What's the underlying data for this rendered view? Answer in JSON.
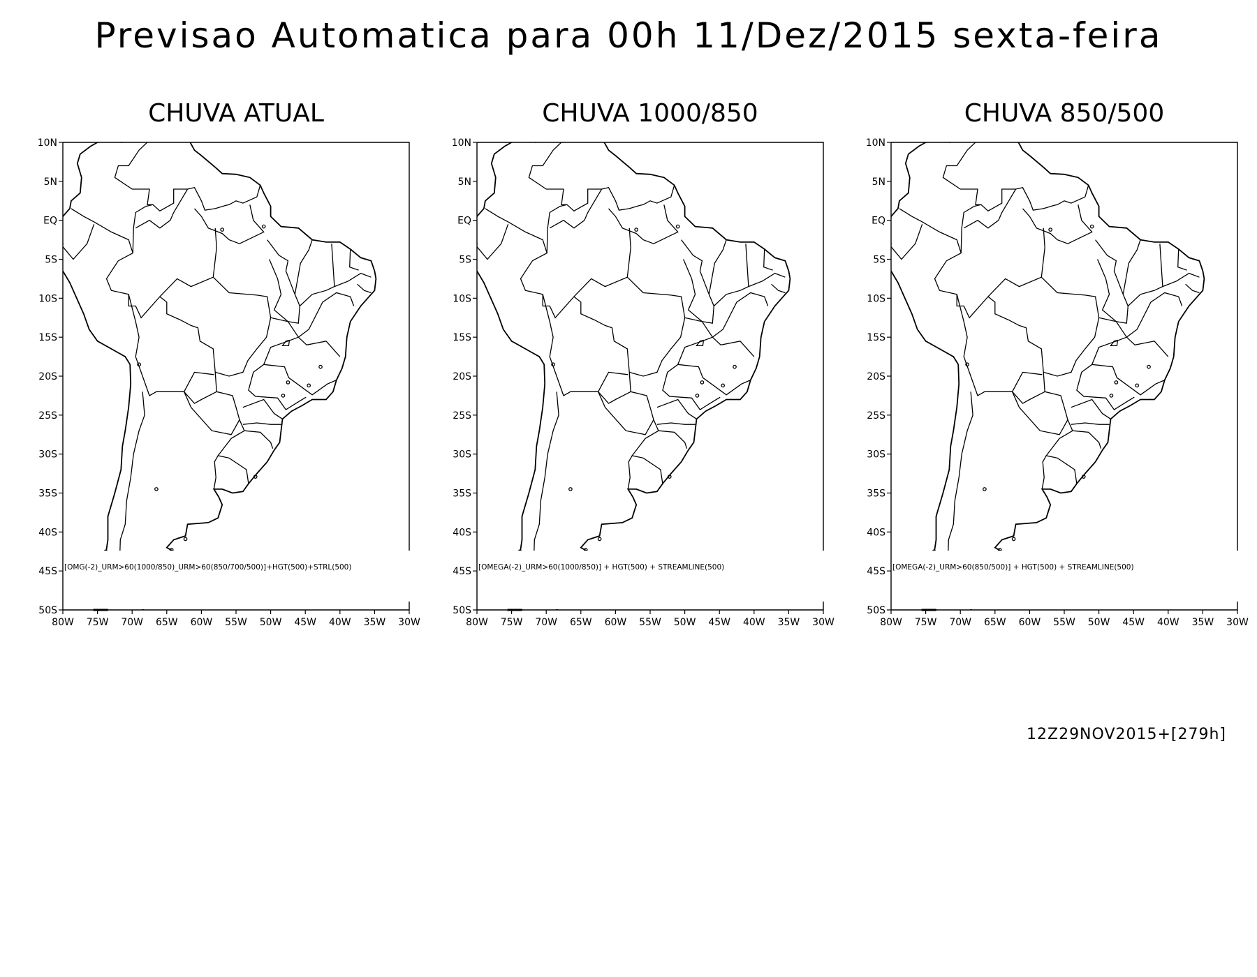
{
  "page": {
    "title": "Previsao Automatica para 00h 11/Dez/2015 sexta-feira",
    "run_stamp": "12Z29NOV2015+[279h]"
  },
  "axes": {
    "lat_ticks": [
      "10N",
      "5N",
      "EQ",
      "5S",
      "10S",
      "15S",
      "20S",
      "25S",
      "30S",
      "35S",
      "40S",
      "45S",
      "50S"
    ],
    "lon_ticks": [
      "80W",
      "75W",
      "70W",
      "65W",
      "60W",
      "55W",
      "50W",
      "45W",
      "40W",
      "35W",
      "30W"
    ],
    "lat_range": [
      -50,
      10
    ],
    "lon_range": [
      -80,
      -30
    ]
  },
  "panels": [
    {
      "title": "CHUVA ATUAL",
      "formula": "[OMG(-2)_URM>60(1000/850)_URM>60(850/700/500)]+HGT(500)+STRL(500)"
    },
    {
      "title": "CHUVA 1000/850",
      "formula": "[OMEGA(-2)_URM>60(1000/850)] + HGT(500) + STREAMLINE(500)"
    },
    {
      "title": "CHUVA 850/500",
      "formula": "[OMEGA(-2)_URM>60(850/500)] + HGT(500) + STREAMLINE(500)"
    }
  ],
  "map_layers": [
    "coastline",
    "country-borders",
    "state-borders"
  ],
  "colors": {
    "line": "#000000",
    "background": "#ffffff"
  }
}
